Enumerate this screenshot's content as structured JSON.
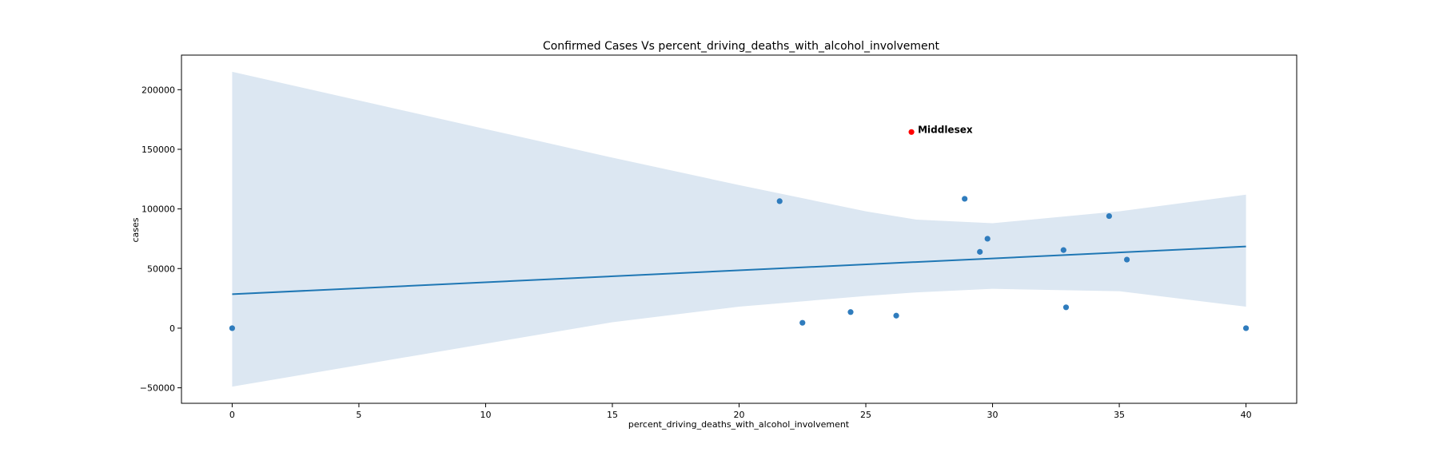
{
  "chart_data": {
    "type": "scatter",
    "title": "Confirmed Cases Vs percent_driving_deaths_with_alcohol_involvement",
    "xlabel": "percent_driving_deaths_with_alcohol_involvement",
    "ylabel": "cases",
    "xlim": [
      -2,
      42
    ],
    "ylim": [
      -63000,
      229000
    ],
    "xticks": [
      0,
      5,
      10,
      15,
      20,
      25,
      30,
      35,
      40
    ],
    "yticks": [
      -50000,
      0,
      50000,
      100000,
      150000,
      200000
    ],
    "grid": false,
    "points": [
      {
        "x": 0,
        "y": 0
      },
      {
        "x": 21.6,
        "y": 106500
      },
      {
        "x": 22.5,
        "y": 4500
      },
      {
        "x": 24.4,
        "y": 13500
      },
      {
        "x": 26.2,
        "y": 10500
      },
      {
        "x": 28.9,
        "y": 108500
      },
      {
        "x": 29.5,
        "y": 64000
      },
      {
        "x": 29.8,
        "y": 75000
      },
      {
        "x": 32.8,
        "y": 65500
      },
      {
        "x": 32.9,
        "y": 17500
      },
      {
        "x": 34.6,
        "y": 94000
      },
      {
        "x": 35.3,
        "y": 57500
      },
      {
        "x": 40,
        "y": 0
      }
    ],
    "highlight": {
      "label": "Middlesex",
      "x": 26.8,
      "y": 164500,
      "color": "#ff0000"
    },
    "regression": {
      "x": [
        0,
        40
      ],
      "y": [
        28500,
        68500
      ],
      "color": "#1f77b4"
    },
    "confidence_band": {
      "x": [
        0,
        5,
        10,
        15,
        20,
        25,
        27,
        30,
        35,
        40
      ],
      "upper": [
        215000,
        191000,
        167000,
        143000,
        120000,
        98000,
        91000,
        88000,
        98000,
        112000
      ],
      "lower": [
        -49000,
        -31000,
        -13000,
        5000,
        18000,
        27000,
        30000,
        33000,
        31000,
        18000
      ],
      "color": "#dce7f2"
    },
    "point_color": "#2f7cbd"
  }
}
